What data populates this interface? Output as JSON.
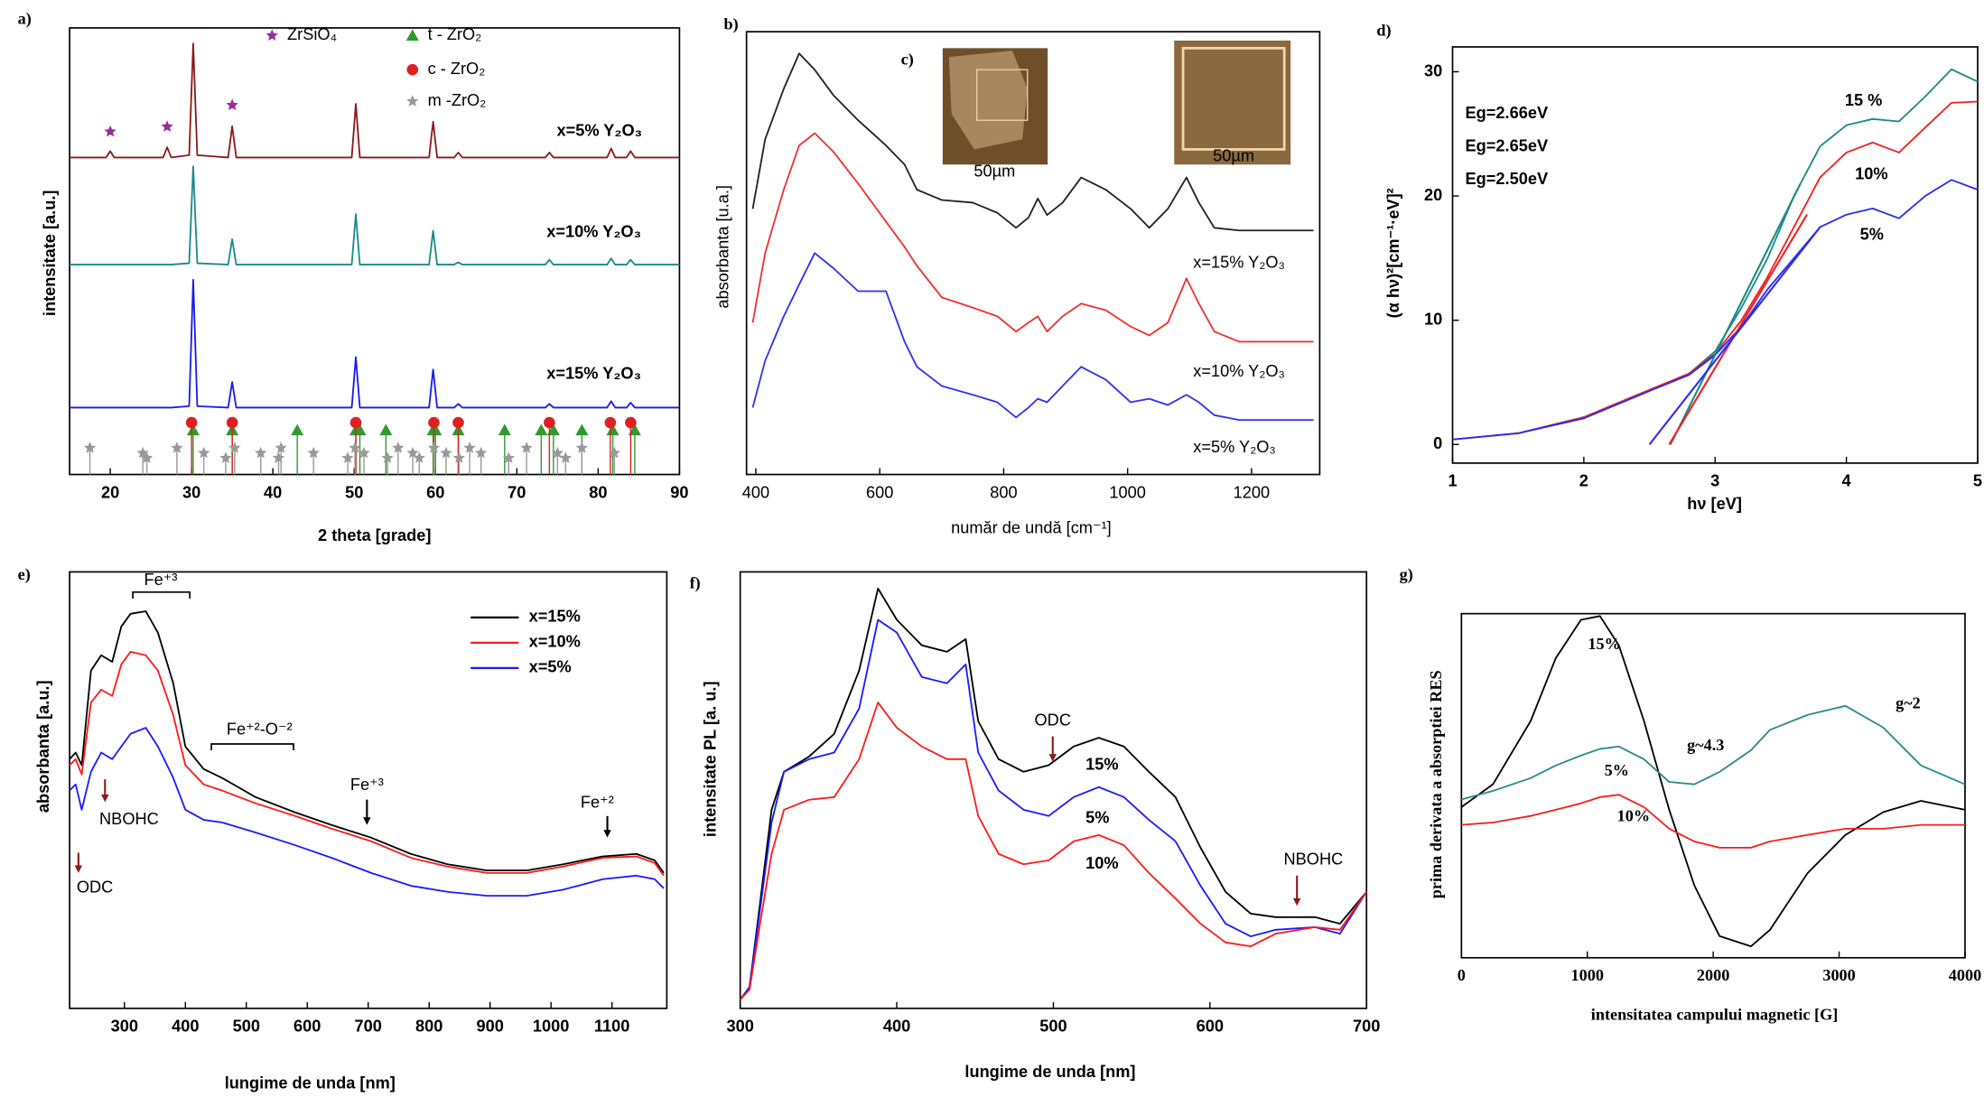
{
  "chart_data": [
    {
      "type": "line",
      "panel_label": "a)",
      "xlabel": "2 theta [grade]",
      "ylabel": "intensitate [a.u.]",
      "xlim": [
        15,
        90
      ],
      "xticks": [
        20,
        30,
        40,
        50,
        60,
        70,
        80,
        90
      ],
      "ylim": [
        0,
        100
      ],
      "x": [
        15,
        19.5,
        20,
        20.5,
        26.5,
        27,
        27.5,
        29.7,
        30.2,
        30.7,
        34.5,
        35,
        35.5,
        49.7,
        50.2,
        50.7,
        59.2,
        59.7,
        60.2,
        62.3,
        62.8,
        63.3,
        73.5,
        74,
        74.5,
        81.1,
        81.6,
        82.1,
        83.5,
        84,
        84.5,
        90
      ],
      "series": [
        {
          "name": "x=5% Y₂O₃",
          "color": "#8b1a1a",
          "values": [
            71,
            71,
            72.4,
            71,
            71,
            73.3,
            71,
            71.5,
            96.5,
            71.5,
            71,
            78,
            71,
            71,
            83,
            71,
            71,
            79,
            71,
            71,
            72.1,
            71,
            71,
            72.1,
            71,
            71,
            73,
            71,
            71,
            72.4,
            71,
            71
          ]
        },
        {
          "name": "x=10% Y₂O₃",
          "color": "#1a8a8a",
          "values": [
            47,
            47,
            47,
            47,
            47,
            47,
            47,
            47.3,
            69,
            47.3,
            47,
            52.7,
            47,
            47,
            58.3,
            47,
            47,
            54.6,
            47,
            47,
            47.5,
            47,
            47,
            48.1,
            47,
            47,
            48.4,
            47,
            47,
            48.1,
            47,
            47
          ]
        },
        {
          "name": "x=15% Y₂O₃",
          "color": "#1a1aee",
          "values": [
            15,
            15,
            15,
            15,
            15,
            15,
            15,
            15.3,
            43.6,
            15.3,
            15,
            20.7,
            15,
            15,
            26.3,
            15,
            15,
            23.5,
            15,
            15,
            15.8,
            15,
            15,
            15.8,
            15,
            15,
            16.4,
            15,
            15,
            16.1,
            15,
            15
          ]
        }
      ],
      "reference_peaks": [
        {
          "name": "ZrSiO₄",
          "color": "#9b2a9b",
          "marker": "star",
          "x": [
            20,
            27,
            35
          ]
        },
        {
          "name": "t - ZrO₂",
          "color": "#2e9b2e",
          "marker": "triangle",
          "x": [
            30.2,
            35,
            43,
            50.2,
            50.7,
            53.9,
            59.7,
            60,
            62.8,
            68.5,
            73,
            74.5,
            78,
            81.8,
            84.5
          ]
        },
        {
          "name": "c - ZrO₂",
          "color": "#e02020",
          "marker": "circle",
          "x": [
            30,
            35,
            50.2,
            59.8,
            62.8,
            74,
            81.5,
            84
          ]
        },
        {
          "name": "m -ZrO₂",
          "color": "#999999",
          "marker": "star",
          "x": [
            17.5,
            24,
            24.5,
            28.2,
            31.5,
            34.2,
            35.3,
            38.5,
            40.7,
            41,
            45,
            49.2,
            50.1,
            51.2,
            54.1,
            55.4,
            57.2,
            58,
            59.8,
            61.3,
            62.9,
            64.2,
            65.6,
            69,
            71.2,
            75,
            76,
            78,
            82
          ]
        }
      ]
    },
    {
      "type": "line",
      "panel_label": "b)",
      "xlabel": "număr de undă [cm⁻¹]",
      "ylabel": "absorbanta [u.a.]",
      "xlim": [
        385,
        1310
      ],
      "xticks": [
        400,
        600,
        800,
        1000,
        1200
      ],
      "ylim": [
        0,
        100
      ],
      "x": [
        395,
        415,
        445,
        470,
        495,
        525,
        565,
        610,
        640,
        660,
        700,
        750,
        790,
        820,
        840,
        855,
        870,
        895,
        925,
        965,
        1005,
        1035,
        1065,
        1095,
        1115,
        1140,
        1180,
        1300
      ],
      "series": [
        {
          "name": "x=15% Y₂O₃",
          "color": "#222222",
          "values": [
            60,
            75.7,
            87.1,
            95.1,
            91.4,
            85.7,
            80,
            74.3,
            70,
            64.3,
            62,
            61.4,
            59.1,
            55.7,
            58,
            62.3,
            58.6,
            61.4,
            67.1,
            64.3,
            60,
            55.7,
            60,
            67.1,
            61.4,
            55.7,
            55.1,
            55.1
          ]
        },
        {
          "name": "x=10% Y₂O₃",
          "color": "#f03030",
          "values": [
            34.3,
            50,
            64.3,
            74.3,
            77.1,
            72.9,
            65.7,
            57.1,
            51.4,
            47.1,
            40,
            37.7,
            35.7,
            32.3,
            34.3,
            35.7,
            32.3,
            35.7,
            38.6,
            37.1,
            33.4,
            31.4,
            34.3,
            44.3,
            38.6,
            32.3,
            30,
            30
          ]
        },
        {
          "name": "x=5% Y₂O₃",
          "color": "#3030f0",
          "values": [
            15.1,
            25.7,
            35.7,
            42.9,
            50,
            46.6,
            41.4,
            41.4,
            30,
            24.3,
            20,
            18,
            16.3,
            12.9,
            15.1,
            17.1,
            16.3,
            20,
            24.3,
            21.4,
            16.3,
            17.1,
            15.7,
            18,
            16.3,
            13.4,
            12.3,
            12.3
          ]
        }
      ],
      "inset": {
        "label": "c)",
        "scale_bars": [
          "50µm",
          "50µm"
        ]
      }
    },
    {
      "type": "line",
      "panel_label": "d)",
      "xlabel": "hν [eV]",
      "ylabel": "(α hν)²[cm⁻¹·eV]²",
      "xlim": [
        1,
        5
      ],
      "xticks": [
        1,
        2,
        3,
        4,
        5
      ],
      "ylim": [
        -1.5,
        32
      ],
      "yticks": [
        0,
        10,
        20,
        30
      ],
      "x": [
        1,
        1.5,
        2,
        2.5,
        2.8,
        3,
        3.2,
        3.4,
        3.6,
        3.8,
        4,
        4.2,
        4.4,
        4.6,
        4.8,
        5
      ],
      "series": [
        {
          "name": "15 %",
          "color": "#1a8a8a",
          "eg_label": "Eg=2.66eV",
          "values": [
            0.4,
            0.9,
            2.2,
            4.4,
            5.7,
            7.5,
            11,
            15,
            20,
            24,
            25.7,
            26.2,
            26,
            28,
            30.2,
            29.2
          ],
          "fit": {
            "x": [
              2.66,
              3.65
            ],
            "y": [
              0,
              21
            ]
          }
        },
        {
          "name": "10%",
          "color": "#f02020",
          "eg_label": "Eg=2.65eV",
          "values": [
            0.4,
            0.9,
            2.2,
            4.4,
            5.7,
            7.3,
            10,
            13.5,
            17.5,
            21.5,
            23.5,
            24.3,
            23.5,
            25.5,
            27.5,
            27.6
          ],
          "fit": {
            "x": [
              2.65,
              3.7
            ],
            "y": [
              0,
              18.5
            ]
          }
        },
        {
          "name": "5%",
          "color": "#2a2af0",
          "eg_label": "Eg=2.50eV",
          "values": [
            0.4,
            0.9,
            2.1,
            4.3,
            5.6,
            7.2,
            9.5,
            12.5,
            15,
            17.5,
            18.5,
            19,
            18.2,
            20,
            21.3,
            20.5
          ],
          "fit": {
            "x": [
              2.5,
              3.8
            ],
            "y": [
              0,
              17.5
            ]
          }
        }
      ]
    },
    {
      "type": "line",
      "panel_label": "e)",
      "xlabel": "lungime de unda [nm]",
      "ylabel": "absorbanta  [a.u.]",
      "xlim": [
        210,
        1190
      ],
      "xticks": [
        300,
        400,
        500,
        600,
        700,
        800,
        900,
        1000,
        1100
      ],
      "ylim": [
        0,
        100
      ],
      "legend": "upper right",
      "x": [
        210,
        220,
        230,
        245,
        262,
        280,
        295,
        310,
        335,
        355,
        380,
        400,
        430,
        460,
        515,
        580,
        640,
        705,
        770,
        830,
        895,
        960,
        1020,
        1085,
        1140,
        1170,
        1185
      ],
      "series": [
        {
          "name": "x=15%",
          "color": "#000000",
          "values": [
            57.1,
            58.6,
            55.7,
            77.4,
            80.9,
            79.4,
            87.5,
            90.4,
            91,
            86.1,
            74.5,
            60,
            54.8,
            52.8,
            48.4,
            44.9,
            42,
            39.1,
            35.4,
            33,
            31.6,
            31.6,
            33,
            34.8,
            35.4,
            33.9,
            31
          ]
        },
        {
          "name": "x=10%",
          "color": "#ff1a1a",
          "values": [
            55.7,
            57.1,
            53.6,
            70.1,
            73,
            71.6,
            78.8,
            81.7,
            80.9,
            77.4,
            67.2,
            55.7,
            51.3,
            49.9,
            47,
            44.1,
            41.2,
            38.3,
            34.5,
            32.5,
            31,
            31,
            32.5,
            34.5,
            34.8,
            33.3,
            30.4
          ]
        },
        {
          "name": "x=5%",
          "color": "#1a1aff",
          "values": [
            49.9,
            51.3,
            45.5,
            54.2,
            58.6,
            57.1,
            60,
            62.9,
            64.3,
            60,
            52.8,
            45.5,
            43.2,
            42.6,
            40.3,
            37.4,
            34.5,
            31,
            28.1,
            26.7,
            25.8,
            25.8,
            27.2,
            29.6,
            30.4,
            29.6,
            27.5
          ]
        }
      ],
      "annotations": [
        "Fe⁺³",
        "Fe⁺²-O⁻²",
        "Fe⁺³",
        "Fe⁺²",
        "NBOHC",
        "ODC"
      ]
    },
    {
      "type": "line",
      "panel_label": "f)",
      "xlabel": "lungime de unda [nm]",
      "ylabel": "intensitate PL  [a. u.]",
      "xlim": [
        300,
        700
      ],
      "xticks": [
        300,
        400,
        500,
        600,
        700
      ],
      "ylim": [
        0,
        100
      ],
      "x": [
        300,
        306,
        312,
        320,
        328,
        344,
        360,
        376,
        388,
        400,
        416,
        432,
        444,
        452,
        465,
        481,
        497,
        513,
        529,
        545,
        561,
        578,
        594,
        610,
        626,
        642,
        667,
        683,
        700
      ],
      "series": [
        {
          "name": "15%",
          "color": "#000000",
          "values": [
            2,
            4.9,
            22.3,
            45.5,
            54.2,
            57.7,
            62.9,
            77.4,
            96.2,
            89,
            83.2,
            81.7,
            84.6,
            65.8,
            57.1,
            54.2,
            55.7,
            60,
            62,
            60,
            54.2,
            48.4,
            36.8,
            26.7,
            21.7,
            20.9,
            20.9,
            19.4,
            26.7
          ]
        },
        {
          "name": "5%",
          "color": "#1a1aff",
          "values": [
            2,
            4.9,
            20.9,
            42.6,
            54.2,
            57.1,
            58.6,
            68.7,
            89,
            86.1,
            75.9,
            74.5,
            78.8,
            58.6,
            49.9,
            45.5,
            44.1,
            48.4,
            50.7,
            48.4,
            43.2,
            38.3,
            28.1,
            19.4,
            16.5,
            18,
            18.6,
            17.1,
            26.7
          ]
        },
        {
          "name": "10%",
          "color": "#ff1a1a",
          "values": [
            2,
            4.3,
            18,
            35.4,
            45.5,
            47.8,
            48.4,
            57.1,
            70.1,
            64.3,
            60,
            57.1,
            57.1,
            44.1,
            35.4,
            33,
            33.9,
            38.3,
            39.7,
            37.4,
            31,
            25.2,
            19.4,
            15.1,
            14.2,
            17.1,
            18.6,
            18,
            26.7
          ]
        }
      ],
      "annotations": [
        "ODC",
        "NBOHC"
      ]
    },
    {
      "type": "line",
      "panel_label": "g)",
      "xlabel": "intensitatea campului magnetic [G]",
      "ylabel": "prima derivata a absorptiei RES",
      "xlim": [
        0,
        4000
      ],
      "xticks": [
        0,
        1000,
        2000,
        3000,
        4000
      ],
      "ylim": [
        0,
        100
      ],
      "x": [
        0,
        250,
        550,
        750,
        950,
        1100,
        1250,
        1450,
        1650,
        1850,
        2050,
        2300,
        2450,
        2750,
        3050,
        3350,
        3650,
        4000
      ],
      "series": [
        {
          "name": "15%",
          "color": "#000000",
          "values": [
            43.8,
            50.4,
            68.8,
            87.1,
            98.2,
            99.3,
            90.8,
            68.8,
            43,
            21,
            6.3,
            3.3,
            8.1,
            24.6,
            35.7,
            42.3,
            45.6,
            43
          ]
        },
        {
          "name": "5%",
          "color": "#2a8a8a",
          "values": [
            46,
            48.5,
            52.2,
            55.9,
            58.8,
            60.7,
            61.4,
            57.7,
            51.1,
            50.4,
            54,
            60.3,
            66.2,
            70.6,
            73.2,
            66.9,
            55.9,
            50.4
          ]
        },
        {
          "name": "10%",
          "color": "#f02020",
          "values": [
            38.6,
            39.3,
            41.2,
            43,
            44.9,
            46.7,
            47.4,
            43.8,
            37.5,
            33.8,
            32,
            32,
            33.8,
            35.7,
            37.5,
            37.5,
            38.6,
            38.6
          ]
        }
      ],
      "annotations": [
        "g~4.3",
        "g~2"
      ]
    }
  ]
}
